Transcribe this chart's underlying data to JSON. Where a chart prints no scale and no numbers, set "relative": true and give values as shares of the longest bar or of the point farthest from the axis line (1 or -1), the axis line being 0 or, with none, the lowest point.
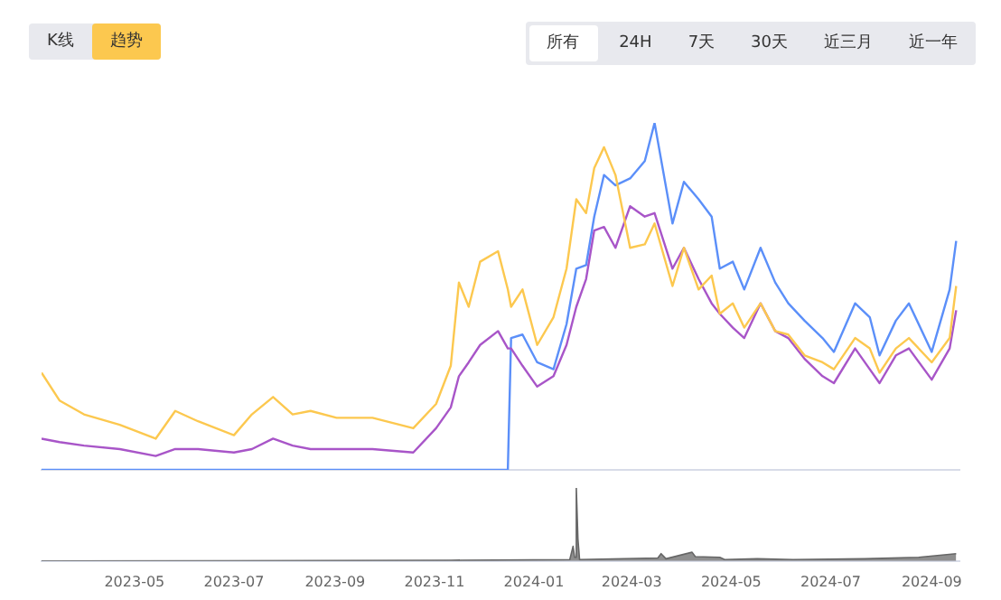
{
  "chart_data": [
    {
      "type": "line",
      "relative": true,
      "tick_labels": false,
      "annotations": [
        "K线",
        "趋势",
        "所有",
        "24H",
        "7天",
        "30天",
        "近三月",
        "近一年"
      ],
      "xlim": [
        "2023-03-05",
        "2024-09-18"
      ],
      "xticks": [
        "2023-05",
        "2023-07",
        "2023-09",
        "2023-11",
        "2024-01",
        "2024-03",
        "2024-05",
        "2024-07",
        "2024-09"
      ],
      "x": [
        "2023-03-05",
        "2023-03-16",
        "2023-03-31",
        "2023-04-22",
        "2023-05-14",
        "2023-05-26",
        "2023-06-09",
        "2023-07-01",
        "2023-07-12",
        "2023-07-25",
        "2023-08-06",
        "2023-08-17",
        "2023-09-02",
        "2023-09-24",
        "2023-10-19",
        "2023-11-02",
        "2023-11-11",
        "2023-11-16",
        "2023-11-22",
        "2023-11-29",
        "2023-12-10",
        "2023-12-16",
        "2023-12-18",
        "2023-12-25",
        "2024-01-03",
        "2024-01-13",
        "2024-01-21",
        "2024-01-27",
        "2024-02-02",
        "2024-02-07",
        "2024-02-13",
        "2024-02-20",
        "2024-02-29",
        "2024-03-09",
        "2024-03-15",
        "2024-03-26",
        "2024-04-02",
        "2024-04-11",
        "2024-04-19",
        "2024-04-24",
        "2024-05-02",
        "2024-05-09",
        "2024-05-19",
        "2024-05-28",
        "2024-06-05",
        "2024-06-15",
        "2024-06-26",
        "2024-07-03",
        "2024-07-16",
        "2024-07-25",
        "2024-07-31",
        "2024-08-10",
        "2024-08-18",
        "2024-09-01",
        "2024-09-12",
        "2024-09-16"
      ],
      "series": [
        {
          "color": "#fcc84f",
          "values": [
            0.28,
            0.2,
            0.16,
            0.13,
            0.09,
            0.17,
            0.14,
            0.1,
            0.16,
            0.21,
            0.16,
            0.17,
            0.15,
            0.15,
            0.12,
            0.19,
            0.3,
            0.54,
            0.47,
            0.6,
            0.63,
            0.52,
            0.47,
            0.52,
            0.36,
            0.44,
            0.58,
            0.78,
            0.74,
            0.87,
            0.93,
            0.85,
            0.64,
            0.65,
            0.71,
            0.53,
            0.64,
            0.52,
            0.56,
            0.45,
            0.48,
            0.41,
            0.48,
            0.4,
            0.39,
            0.33,
            0.31,
            0.29,
            0.38,
            0.35,
            0.28,
            0.35,
            0.38,
            0.31,
            0.38,
            0.53
          ]
        },
        {
          "color": "#a855c8",
          "values": [
            0.09,
            0.08,
            0.07,
            0.06,
            0.04,
            0.06,
            0.06,
            0.05,
            0.06,
            0.09,
            0.07,
            0.06,
            0.06,
            0.06,
            0.05,
            0.12,
            0.18,
            0.27,
            0.31,
            0.36,
            0.4,
            0.35,
            0.35,
            0.3,
            0.24,
            0.27,
            0.36,
            0.47,
            0.55,
            0.69,
            0.7,
            0.64,
            0.76,
            0.73,
            0.74,
            0.58,
            0.64,
            0.55,
            0.48,
            0.45,
            0.41,
            0.38,
            0.48,
            0.4,
            0.38,
            0.32,
            0.27,
            0.25,
            0.35,
            0.29,
            0.25,
            0.33,
            0.35,
            0.26,
            0.35,
            0.46
          ]
        },
        {
          "color": "#5b8ff9",
          "values": [
            0,
            0,
            0,
            0,
            0,
            0,
            0,
            0,
            0,
            0,
            0,
            0,
            0,
            0,
            0,
            0,
            0,
            0,
            0,
            0,
            0,
            0,
            0.38,
            0.39,
            0.31,
            0.29,
            0.42,
            0.58,
            0.59,
            0.73,
            0.85,
            0.82,
            0.84,
            0.89,
            1,
            0.71,
            0.83,
            0.78,
            0.73,
            0.58,
            0.6,
            0.52,
            0.64,
            0.54,
            0.48,
            0.43,
            0.38,
            0.34,
            0.48,
            0.44,
            0.33,
            0.43,
            0.48,
            0.34,
            0.52,
            0.66
          ]
        }
      ]
    },
    {
      "type": "area",
      "relative": true,
      "xlim": [
        "2023-03-05",
        "2024-09-18"
      ],
      "xticks": [
        "2023-05",
        "2023-07",
        "2023-09",
        "2023-11",
        "2024-01",
        "2024-03",
        "2024-05",
        "2024-07",
        "2024-09"
      ],
      "x": [
        "2023-03-05",
        "2023-11-11",
        "2024-01-23",
        "2024-01-25",
        "2024-01-26",
        "2024-01-27",
        "2024-01-28",
        "2024-01-29",
        "2024-03-17",
        "2024-03-19",
        "2024-03-22",
        "2024-04-07",
        "2024-04-09",
        "2024-04-24",
        "2024-04-27",
        "2024-05-17",
        "2024-06-08",
        "2024-07-22",
        "2024-08-24",
        "2024-09-16"
      ],
      "series": [
        {
          "color": "#666666",
          "values": [
            0,
            0.01,
            0.02,
            0.2,
            0.05,
            1,
            0.3,
            0.02,
            0.04,
            0.1,
            0.03,
            0.12,
            0.06,
            0.05,
            0.02,
            0.03,
            0.02,
            0.03,
            0.05,
            0.1
          ]
        }
      ]
    }
  ]
}
